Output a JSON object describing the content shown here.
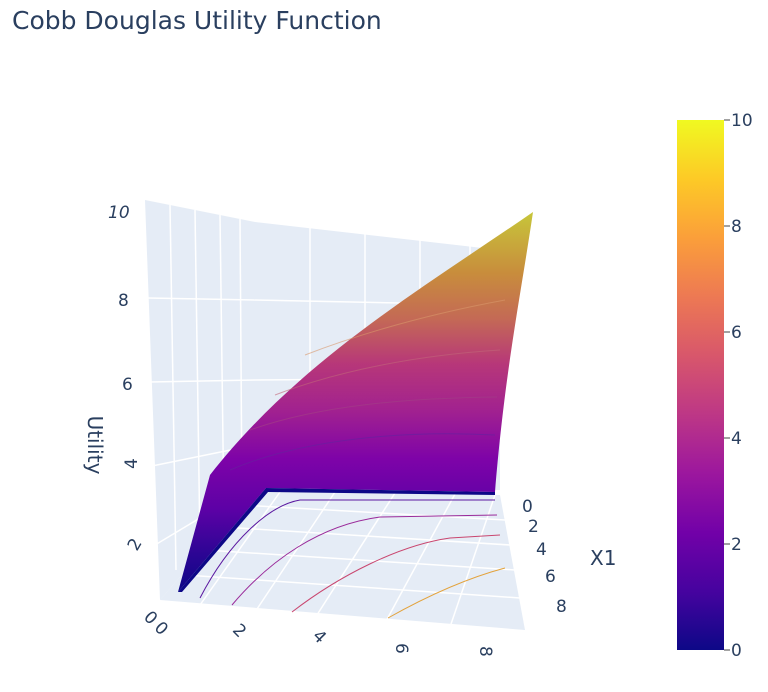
{
  "chart_data": {
    "type": "surface",
    "title": "Cobb Douglas Utility Function",
    "x_axis": {
      "label": "X1",
      "ticks": [
        "0",
        "2",
        "4",
        "6",
        "8"
      ]
    },
    "y_axis": {
      "label": "",
      "ticks": [
        "0",
        "2",
        "4",
        "6",
        "8"
      ]
    },
    "z_axis": {
      "label": "Utility",
      "ticks": [
        "2",
        "4",
        "6",
        "8",
        "10"
      ],
      "range": [
        0,
        10
      ]
    },
    "colorbar": {
      "ticks": [
        "0",
        "2",
        "4",
        "6",
        "8",
        "10"
      ],
      "range": [
        0,
        10
      ]
    },
    "colorscale": [
      "#0d0887",
      "#46039f",
      "#7201a8",
      "#9c179e",
      "#bd3786",
      "#d8576b",
      "#ed7953",
      "#fb9f3a",
      "#fdca26",
      "#f0f921"
    ],
    "contour_levels": [
      2,
      4,
      6,
      8
    ],
    "max_value": 10
  }
}
